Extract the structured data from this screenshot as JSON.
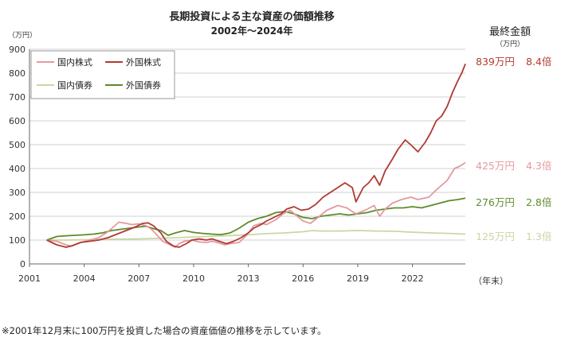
{
  "chart_data": {
    "type": "line",
    "title": "長期投資による主な資産の価額推移",
    "subtitle": "2002年～2024年",
    "ylabel_unit": "（万円）",
    "xlabel_unit": "（年末）",
    "ylim": [
      0,
      900
    ],
    "xlim": [
      2001,
      2024.9
    ],
    "y_ticks": [
      0,
      100,
      200,
      300,
      400,
      500,
      600,
      700,
      800,
      900
    ],
    "x_ticks": [
      2001,
      2004,
      2007,
      2010,
      2013,
      2016,
      2019,
      2022
    ],
    "grid": true,
    "legend_placement": "top-left",
    "series": [
      {
        "name": "国内株式",
        "color": "#e39a9e",
        "x": [
          2001.95,
          2002.5,
          2003.0,
          2003.3,
          2003.8,
          2004.3,
          2004.8,
          2005.3,
          2005.9,
          2006.3,
          2006.6,
          2007.0,
          2007.4,
          2007.7,
          2008.0,
          2008.3,
          2008.7,
          2009.0,
          2009.2,
          2009.5,
          2009.9,
          2010.3,
          2010.7,
          2011.0,
          2011.3,
          2011.7,
          2012.0,
          2012.5,
          2012.9,
          2013.3,
          2013.7,
          2014.0,
          2014.5,
          2014.9,
          2015.3,
          2015.6,
          2016.0,
          2016.4,
          2016.9,
          2017.3,
          2017.9,
          2018.4,
          2018.9,
          2019.4,
          2019.9,
          2020.2,
          2020.5,
          2020.9,
          2021.4,
          2021.9,
          2022.3,
          2022.9,
          2023.3,
          2023.6,
          2023.9,
          2024.3,
          2024.6,
          2024.9
        ],
        "values": [
          100,
          95,
          80,
          75,
          90,
          100,
          110,
          135,
          175,
          170,
          165,
          168,
          160,
          145,
          120,
          95,
          80,
          70,
          85,
          95,
          100,
          92,
          90,
          95,
          90,
          80,
          85,
          90,
          120,
          160,
          170,
          165,
          185,
          210,
          225,
          205,
          180,
          170,
          200,
          225,
          245,
          235,
          210,
          225,
          245,
          200,
          230,
          255,
          270,
          280,
          270,
          280,
          310,
          330,
          350,
          400,
          410,
          425
        ]
      },
      {
        "name": "外国株式",
        "color": "#b03a34",
        "x": [
          2001.95,
          2002.5,
          2003.0,
          2003.3,
          2003.8,
          2004.3,
          2004.8,
          2005.3,
          2005.8,
          2006.3,
          2006.8,
          2007.2,
          2007.5,
          2007.8,
          2008.2,
          2008.5,
          2008.9,
          2009.2,
          2009.6,
          2009.9,
          2010.3,
          2010.7,
          2011.0,
          2011.4,
          2011.8,
          2012.2,
          2012.6,
          2013.0,
          2013.3,
          2013.7,
          2014.0,
          2014.4,
          2014.8,
          2015.1,
          2015.5,
          2015.9,
          2016.3,
          2016.7,
          2017.1,
          2017.5,
          2017.9,
          2018.3,
          2018.7,
          2018.9,
          2019.3,
          2019.6,
          2019.9,
          2020.2,
          2020.5,
          2020.9,
          2021.2,
          2021.6,
          2021.9,
          2022.3,
          2022.7,
          2023.0,
          2023.3,
          2023.6,
          2023.9,
          2024.2,
          2024.5,
          2024.7,
          2024.9
        ],
        "values": [
          100,
          80,
          70,
          75,
          90,
          95,
          100,
          110,
          125,
          140,
          155,
          170,
          172,
          160,
          130,
          95,
          75,
          70,
          85,
          100,
          105,
          100,
          105,
          95,
          85,
          95,
          110,
          130,
          150,
          165,
          180,
          195,
          210,
          230,
          240,
          225,
          230,
          250,
          280,
          300,
          320,
          340,
          320,
          260,
          320,
          340,
          370,
          330,
          390,
          440,
          480,
          520,
          500,
          470,
          510,
          550,
          600,
          620,
          660,
          720,
          770,
          800,
          839
        ]
      },
      {
        "name": "国内債券",
        "color": "#c9d7a4",
        "x": [
          2001.95,
          2003.0,
          2004.0,
          2005.0,
          2006.0,
          2007.0,
          2008.0,
          2009.0,
          2010.0,
          2011.0,
          2012.0,
          2013.0,
          2014.0,
          2015.0,
          2016.0,
          2016.5,
          2017.0,
          2018.0,
          2019.0,
          2020.0,
          2021.0,
          2022.0,
          2023.0,
          2024.0,
          2024.9
        ],
        "values": [
          100,
          100,
          101,
          103,
          104,
          105,
          107,
          110,
          113,
          116,
          119,
          122,
          127,
          130,
          135,
          140,
          138,
          138,
          140,
          138,
          137,
          133,
          130,
          128,
          125
        ]
      },
      {
        "name": "外国債券",
        "color": "#5e8a2a",
        "x": [
          2001.95,
          2002.5,
          2003.0,
          2003.5,
          2004.0,
          2004.5,
          2005.0,
          2005.5,
          2006.0,
          2006.5,
          2007.0,
          2007.4,
          2007.8,
          2008.2,
          2008.6,
          2009.0,
          2009.5,
          2010.0,
          2010.5,
          2011.0,
          2011.5,
          2012.0,
          2012.5,
          2013.0,
          2013.5,
          2014.0,
          2014.5,
          2015.0,
          2015.5,
          2016.0,
          2016.5,
          2017.0,
          2017.5,
          2018.0,
          2018.5,
          2019.0,
          2019.5,
          2020.0,
          2020.5,
          2021.0,
          2021.5,
          2022.0,
          2022.5,
          2023.0,
          2023.5,
          2024.0,
          2024.5,
          2024.9
        ],
        "values": [
          100,
          115,
          118,
          120,
          122,
          125,
          130,
          140,
          145,
          150,
          155,
          158,
          148,
          140,
          120,
          130,
          140,
          132,
          128,
          125,
          123,
          130,
          150,
          175,
          190,
          200,
          215,
          220,
          210,
          195,
          190,
          200,
          205,
          210,
          205,
          210,
          215,
          225,
          230,
          235,
          235,
          240,
          235,
          245,
          255,
          265,
          270,
          276
        ]
      }
    ],
    "final_values": {
      "header": "最終金額",
      "unit": "（万円）",
      "entries": [
        {
          "amount": "839万円",
          "multiple": "8.4倍",
          "color": "#b03a34"
        },
        {
          "amount": "425万円",
          "multiple": "4.3倍",
          "color": "#e39a9e"
        },
        {
          "amount": "276万円",
          "multiple": "2.8倍",
          "color": "#5e8a2a"
        },
        {
          "amount": "125万円",
          "multiple": "1.3倍",
          "color": "#c9d7a4"
        }
      ]
    },
    "footnote": "※2001年12月末に100万円を投資した場合の資産価値の推移を示しています。"
  }
}
